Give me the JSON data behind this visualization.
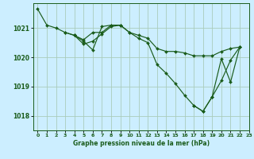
{
  "xlabel": "Graphe pression niveau de la mer (hPa)",
  "bg_color": "#cceeff",
  "grid_color": "#aaccbb",
  "line_color": "#1a5c1a",
  "xlim": [
    -0.5,
    23
  ],
  "ylim": [
    1017.5,
    1021.85
  ],
  "yticks": [
    1018,
    1019,
    1020,
    1021
  ],
  "xticks": [
    0,
    1,
    2,
    3,
    4,
    5,
    6,
    7,
    8,
    9,
    10,
    11,
    12,
    13,
    14,
    15,
    16,
    17,
    18,
    19,
    20,
    21,
    22,
    23
  ],
  "series1_x": [
    0,
    1,
    2,
    3,
    4,
    5,
    6,
    7,
    8,
    9,
    10,
    11,
    12,
    13,
    14,
    15,
    16,
    17,
    18,
    19,
    20,
    21,
    22
  ],
  "series1_y": [
    1021.65,
    1021.1,
    1021.0,
    1020.85,
    1020.75,
    1020.6,
    1020.85,
    1020.85,
    1021.1,
    1021.1,
    1020.85,
    1020.75,
    1020.65,
    1020.3,
    1020.2,
    1020.2,
    1020.15,
    1020.05,
    1020.05,
    1020.05,
    1020.2,
    1020.3,
    1020.35
  ],
  "series2_x": [
    3,
    4,
    5,
    6,
    7,
    8,
    9
  ],
  "series2_y": [
    1020.85,
    1020.75,
    1020.55,
    1020.25,
    1021.05,
    1021.1,
    1021.1
  ],
  "series3_x": [
    4,
    5,
    6,
    7,
    8,
    9,
    10,
    11,
    12,
    13,
    14,
    15,
    16,
    17,
    18,
    19,
    20,
    21,
    22
  ],
  "series3_y": [
    1020.75,
    1020.45,
    1020.55,
    1020.8,
    1021.05,
    1021.1,
    1020.85,
    1020.65,
    1020.5,
    1019.75,
    1019.45,
    1019.1,
    1018.7,
    1018.35,
    1018.15,
    1018.65,
    1019.95,
    1019.15,
    1020.35
  ],
  "series4_x": [
    17,
    18,
    19,
    20,
    21,
    22
  ],
  "series4_y": [
    1018.35,
    1018.15,
    1018.65,
    1019.2,
    1019.9,
    1020.35
  ]
}
